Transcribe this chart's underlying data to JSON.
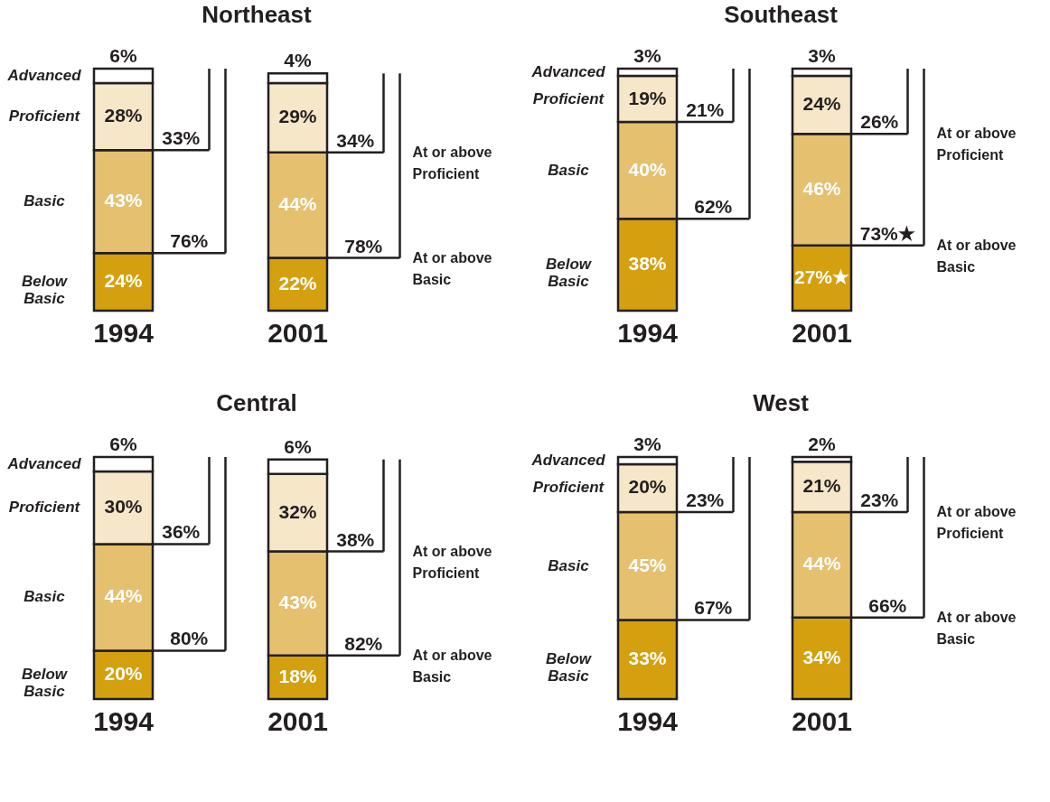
{
  "chart_data": [
    {
      "type": "bar",
      "title": "Northeast",
      "stacked": true,
      "tick_labels": "x",
      "categories": [
        "1994",
        "2001"
      ],
      "series": [
        {
          "name": "Below Basic",
          "color": "#d4a00f",
          "values": [
            24,
            22
          ],
          "value_labels": [
            "24%",
            "22%"
          ]
        },
        {
          "name": "Basic",
          "color": "#e5c06f",
          "values": [
            43,
            44
          ],
          "value_labels": [
            "43%",
            "44%"
          ]
        },
        {
          "name": "Proficient",
          "color": "#f6e7c8",
          "values": [
            28,
            29
          ],
          "value_labels": [
            "28%",
            "29%"
          ]
        },
        {
          "name": "Advanced",
          "color": "#ffffff",
          "values": [
            6,
            4
          ],
          "value_labels": [
            "6%",
            "4%"
          ]
        }
      ],
      "annotations": [
        {
          "text": "33%",
          "x": "1994",
          "y": 67
        },
        {
          "text": "76%",
          "x": "1994",
          "y": 24
        },
        {
          "text": "34%",
          "x": "2001",
          "y": 66
        },
        {
          "text": "78%",
          "x": "2001",
          "y": 22
        },
        "At or above Proficient",
        "At or above Basic"
      ]
    },
    {
      "type": "bar",
      "title": "Southeast",
      "stacked": true,
      "tick_labels": "x",
      "categories": [
        "1994",
        "2001"
      ],
      "series": [
        {
          "name": "Below Basic",
          "color": "#d4a00f",
          "values": [
            38,
            27
          ],
          "value_labels": [
            "38%",
            "27%★"
          ]
        },
        {
          "name": "Basic",
          "color": "#e5c06f",
          "values": [
            40,
            46
          ],
          "value_labels": [
            "40%",
            "46%"
          ]
        },
        {
          "name": "Proficient",
          "color": "#f6e7c8",
          "values": [
            19,
            24
          ],
          "value_labels": [
            "19%",
            "24%"
          ]
        },
        {
          "name": "Advanced",
          "color": "#ffffff",
          "values": [
            3,
            3
          ],
          "value_labels": [
            "3%",
            "3%"
          ]
        }
      ],
      "annotations": [
        {
          "text": "21%",
          "x": "1994",
          "y": 78
        },
        {
          "text": "62%",
          "x": "1994",
          "y": 38
        },
        {
          "text": "26%",
          "x": "2001",
          "y": 73
        },
        {
          "text": "73%★",
          "x": "2001",
          "y": 27
        },
        "At or above Proficient",
        "At or above Basic"
      ]
    },
    {
      "type": "bar",
      "title": "Central",
      "stacked": true,
      "tick_labels": "x",
      "categories": [
        "1994",
        "2001"
      ],
      "series": [
        {
          "name": "Below Basic",
          "color": "#d4a00f",
          "values": [
            20,
            18
          ],
          "value_labels": [
            "20%",
            "18%"
          ]
        },
        {
          "name": "Basic",
          "color": "#e5c06f",
          "values": [
            44,
            43
          ],
          "value_labels": [
            "44%",
            "43%"
          ]
        },
        {
          "name": "Proficient",
          "color": "#f6e7c8",
          "values": [
            30,
            32
          ],
          "value_labels": [
            "30%",
            "32%"
          ]
        },
        {
          "name": "Advanced",
          "color": "#ffffff",
          "values": [
            6,
            6
          ],
          "value_labels": [
            "6%",
            "6%"
          ]
        }
      ],
      "annotations": [
        {
          "text": "36%",
          "x": "1994",
          "y": 64
        },
        {
          "text": "80%",
          "x": "1994",
          "y": 20
        },
        {
          "text": "38%",
          "x": "2001",
          "y": 61
        },
        {
          "text": "82%",
          "x": "2001",
          "y": 18
        },
        "At or above Proficient",
        "At or above Basic"
      ]
    },
    {
      "type": "bar",
      "title": "West",
      "stacked": true,
      "tick_labels": "x",
      "categories": [
        "1994",
        "2001"
      ],
      "series": [
        {
          "name": "Below Basic",
          "color": "#d4a00f",
          "values": [
            33,
            34
          ],
          "value_labels": [
            "33%",
            "34%"
          ]
        },
        {
          "name": "Basic",
          "color": "#e5c06f",
          "values": [
            45,
            44
          ],
          "value_labels": [
            "45%",
            "44%"
          ]
        },
        {
          "name": "Proficient",
          "color": "#f6e7c8",
          "values": [
            20,
            21
          ],
          "value_labels": [
            "20%",
            "21%"
          ]
        },
        {
          "name": "Advanced",
          "color": "#ffffff",
          "values": [
            3,
            2
          ],
          "value_labels": [
            "3%",
            "2%"
          ]
        }
      ],
      "annotations": [
        {
          "text": "23%",
          "x": "1994",
          "y": 78
        },
        {
          "text": "67%",
          "x": "1994",
          "y": 33
        },
        {
          "text": "23%",
          "x": "2001",
          "y": 78
        },
        {
          "text": "66%",
          "x": "2001",
          "y": 34
        },
        "At or above Proficient",
        "At or above Basic"
      ]
    }
  ]
}
